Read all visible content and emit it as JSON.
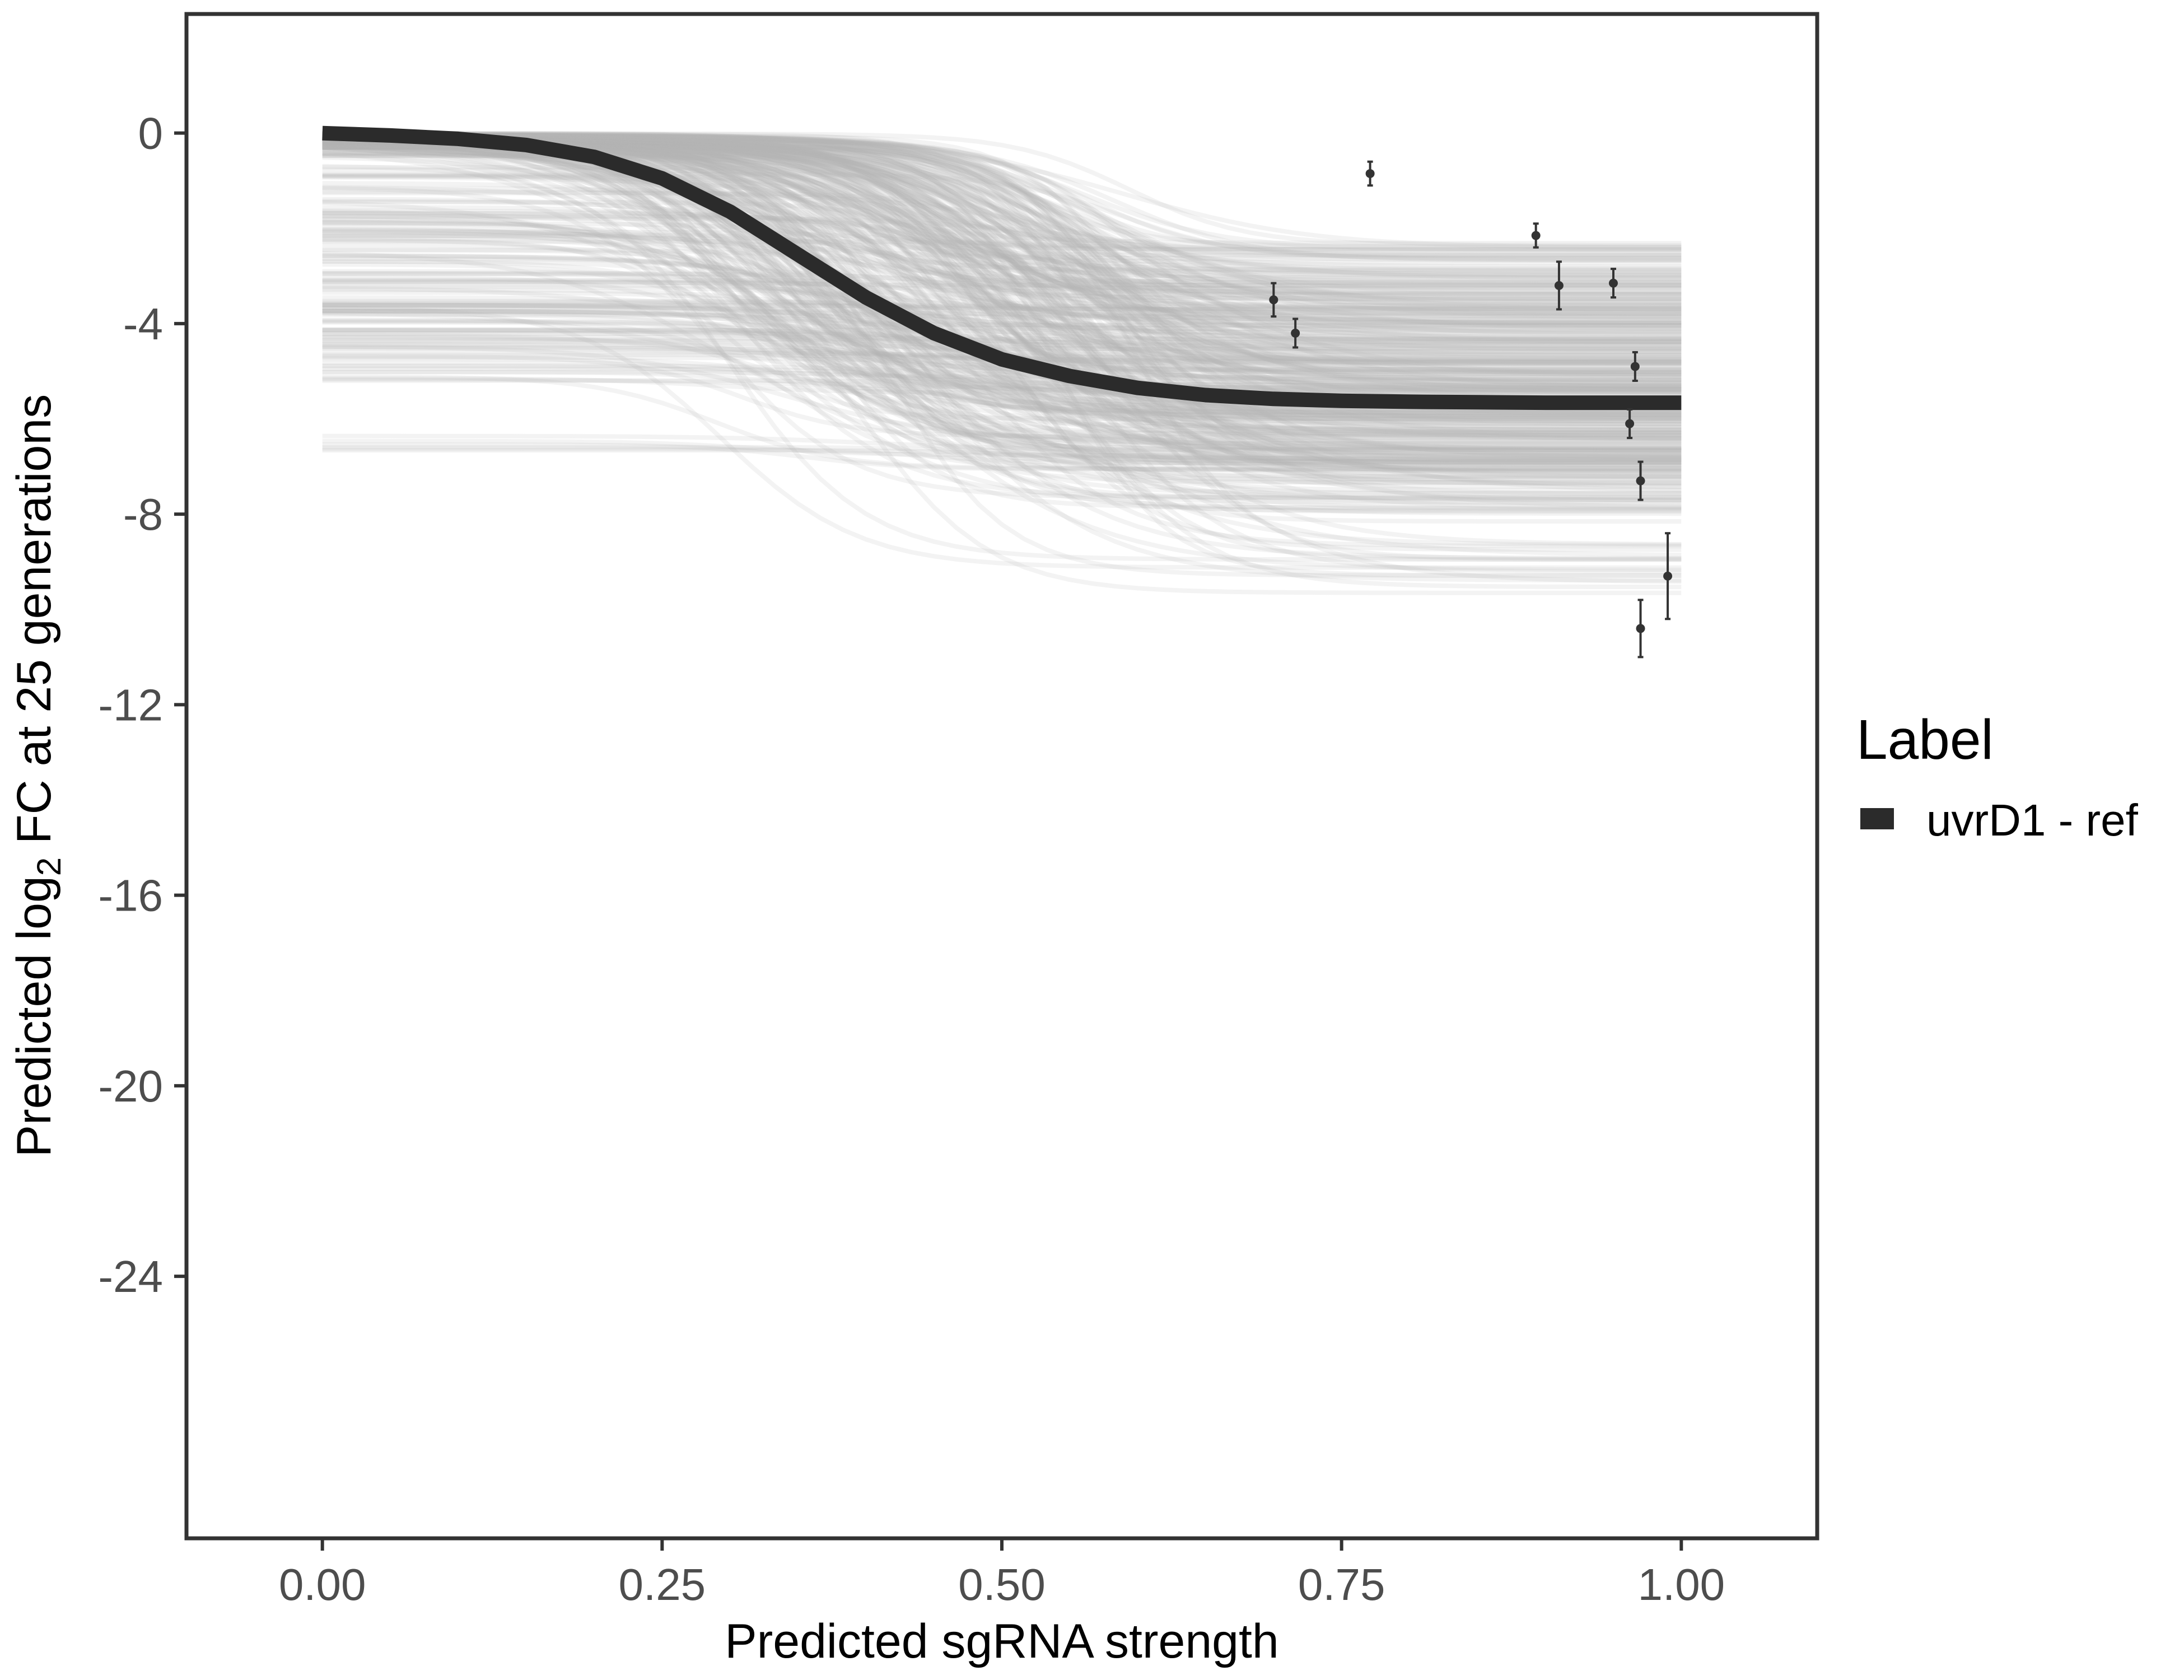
{
  "chart_data": {
    "type": "line",
    "xlabel": "Predicted sgRNA strength",
    "ylabel": {
      "prefix": "Predicted  log",
      "subscript": "2",
      "suffix": " FC at 25 generations"
    },
    "xlim": [
      -0.1,
      1.1
    ],
    "ylim": [
      -29.5,
      2.5
    ],
    "x_ticks": [
      0.0,
      0.25,
      0.5,
      0.75,
      1.0
    ],
    "x_tick_labels": [
      "0.00",
      "0.25",
      "0.50",
      "0.75",
      "1.00"
    ],
    "y_ticks": [
      0,
      -4,
      -8,
      -12,
      -16,
      -20,
      -24
    ],
    "y_tick_labels": [
      "0",
      "-4",
      "-8",
      "-12",
      "-16",
      "-20",
      "-24"
    ],
    "grid": false,
    "legend": {
      "title": "Label",
      "position": "right",
      "entries": [
        {
          "label": "uvrD1 - ref",
          "color": "#2b2b2b"
        }
      ]
    },
    "series": [
      {
        "name": "uvrD1 - ref",
        "kind": "fitted-curve",
        "color": "#2b2b2b",
        "x": [
          0.0,
          0.05,
          0.1,
          0.15,
          0.2,
          0.25,
          0.3,
          0.35,
          0.4,
          0.45,
          0.5,
          0.55,
          0.6,
          0.65,
          0.7,
          0.75,
          0.8,
          0.85,
          0.9,
          0.95,
          1.0
        ],
        "y": [
          0.0,
          -0.05,
          -0.12,
          -0.25,
          -0.5,
          -0.95,
          -1.65,
          -2.55,
          -3.45,
          -4.2,
          -4.75,
          -5.1,
          -5.35,
          -5.5,
          -5.58,
          -5.62,
          -5.64,
          -5.65,
          -5.66,
          -5.66,
          -5.66
        ]
      }
    ],
    "posterior_draws": {
      "color": "#b3b3b3",
      "description_count": 400,
      "start_range": [
        -6.7,
        0.0
      ],
      "end_range": [
        -9.7,
        -2.3
      ]
    },
    "points": [
      {
        "x": 0.7,
        "y": -3.5,
        "err": 0.35
      },
      {
        "x": 0.716,
        "y": -4.2,
        "err": 0.3
      },
      {
        "x": 0.771,
        "y": -0.85,
        "err": 0.25
      },
      {
        "x": 0.893,
        "y": -2.15,
        "err": 0.25
      },
      {
        "x": 0.91,
        "y": -3.2,
        "err": 0.5
      },
      {
        "x": 0.95,
        "y": -3.15,
        "err": 0.3
      },
      {
        "x": 0.962,
        "y": -6.1,
        "err": 0.3
      },
      {
        "x": 0.966,
        "y": -4.9,
        "err": 0.3
      },
      {
        "x": 0.97,
        "y": -7.3,
        "err": 0.4
      },
      {
        "x": 0.97,
        "y": -10.4,
        "err": 0.6
      },
      {
        "x": 0.99,
        "y": -9.3,
        "err": 0.9
      }
    ]
  }
}
